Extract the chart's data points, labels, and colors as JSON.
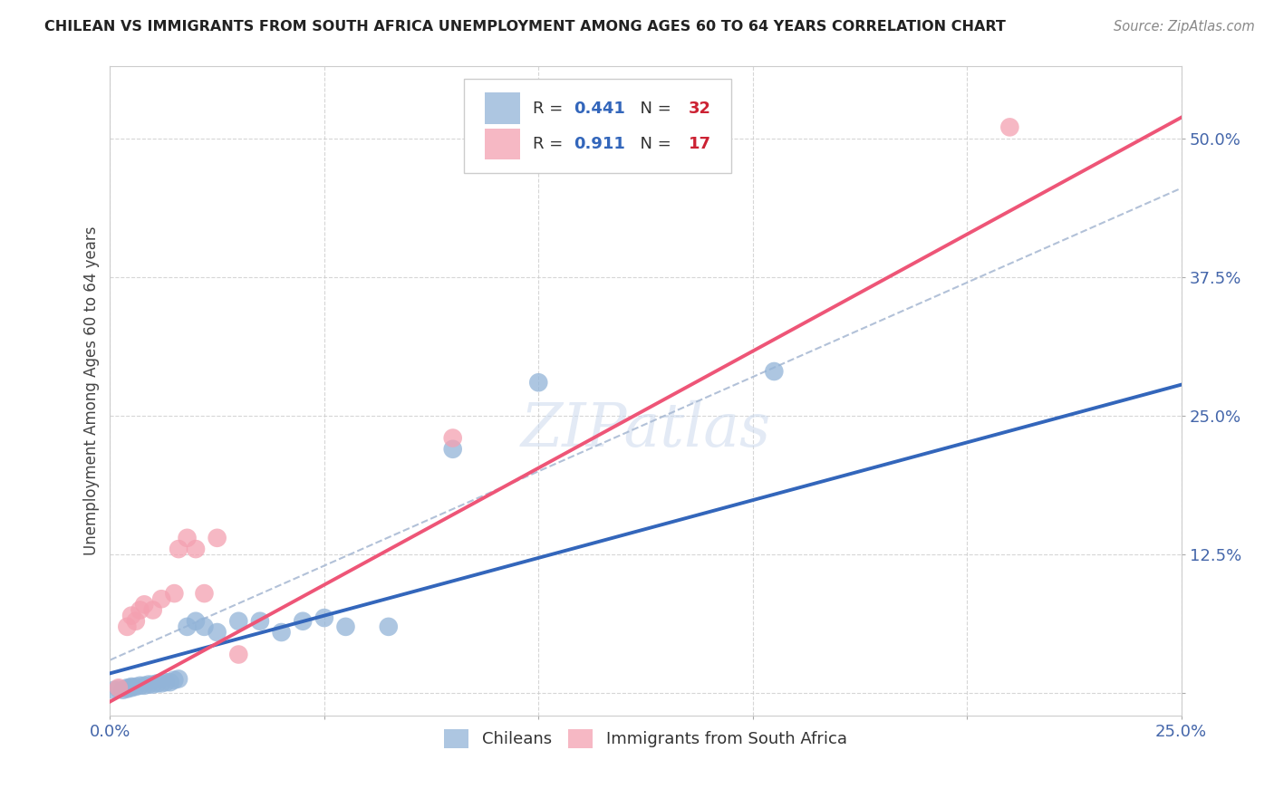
{
  "title": "CHILEAN VS IMMIGRANTS FROM SOUTH AFRICA UNEMPLOYMENT AMONG AGES 60 TO 64 YEARS CORRELATION CHART",
  "source": "Source: ZipAtlas.com",
  "ylabel": "Unemployment Among Ages 60 to 64 years",
  "xlim": [
    0,
    0.25
  ],
  "ylim": [
    -0.02,
    0.565
  ],
  "xticks": [
    0.0,
    0.05,
    0.1,
    0.15,
    0.2,
    0.25
  ],
  "yticks": [
    0.0,
    0.125,
    0.25,
    0.375,
    0.5
  ],
  "xticklabels": [
    "0.0%",
    "",
    "",
    "",
    "",
    "25.0%"
  ],
  "yticklabels": [
    "",
    "12.5%",
    "25.0%",
    "37.5%",
    "50.0%"
  ],
  "blue_color": "#92b4d8",
  "pink_color": "#f4a0b0",
  "blue_line_color": "#3366bb",
  "pink_line_color": "#ee5577",
  "dash_color": "#aabbd4",
  "watermark": "ZIPatlas",
  "chileans_x": [
    0.001,
    0.002,
    0.003,
    0.004,
    0.004,
    0.005,
    0.005,
    0.006,
    0.007,
    0.008,
    0.009,
    0.01,
    0.011,
    0.012,
    0.013,
    0.014,
    0.015,
    0.016,
    0.018,
    0.02,
    0.022,
    0.025,
    0.03,
    0.035,
    0.04,
    0.045,
    0.05,
    0.055,
    0.065,
    0.08,
    0.1,
    0.155
  ],
  "chileans_y": [
    0.003,
    0.004,
    0.003,
    0.004,
    0.005,
    0.005,
    0.006,
    0.006,
    0.007,
    0.007,
    0.008,
    0.008,
    0.009,
    0.009,
    0.01,
    0.01,
    0.012,
    0.013,
    0.06,
    0.065,
    0.06,
    0.055,
    0.065,
    0.065,
    0.055,
    0.065,
    0.068,
    0.06,
    0.06,
    0.22,
    0.28,
    0.29
  ],
  "sa_x": [
    0.002,
    0.004,
    0.005,
    0.006,
    0.007,
    0.008,
    0.01,
    0.012,
    0.015,
    0.016,
    0.018,
    0.02,
    0.022,
    0.025,
    0.03,
    0.08,
    0.21
  ],
  "sa_y": [
    0.005,
    0.06,
    0.07,
    0.065,
    0.075,
    0.08,
    0.075,
    0.085,
    0.09,
    0.13,
    0.14,
    0.13,
    0.09,
    0.14,
    0.035,
    0.23,
    0.51
  ],
  "blue_trend": [
    0.0,
    0.25,
    0.018,
    0.278
  ],
  "pink_trend": [
    -0.005,
    0.253,
    -0.018,
    0.525
  ],
  "dash_trend": [
    0.0,
    0.25,
    0.03,
    0.455
  ]
}
